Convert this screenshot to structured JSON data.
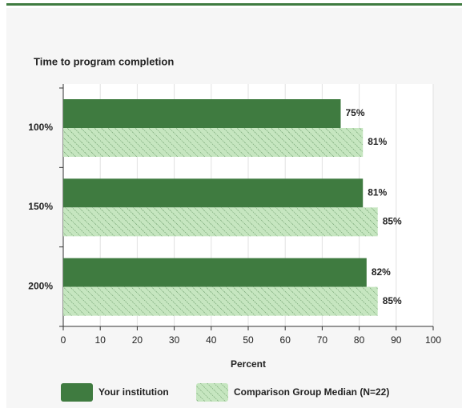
{
  "chart_data": {
    "type": "hbar",
    "title": "Time to program completion",
    "categories": [
      "100%",
      "150%",
      "200%"
    ],
    "series": [
      {
        "name": "Your institution",
        "color": "#3f7b40",
        "values": [
          75,
          81,
          82
        ],
        "value_labels": [
          "75%",
          "81%",
          "82%"
        ]
      },
      {
        "name": "Comparison Group Median (N=22)",
        "color": "#c6e6c0",
        "hatch": true,
        "values": [
          81,
          85,
          85
        ],
        "value_labels": [
          "81%",
          "85%",
          "85%"
        ]
      }
    ],
    "xlabel": "Percent",
    "xlim": [
      0,
      100
    ],
    "xticks": [
      0,
      10,
      20,
      30,
      40,
      50,
      60,
      70,
      80,
      90,
      100
    ],
    "grid": true
  }
}
